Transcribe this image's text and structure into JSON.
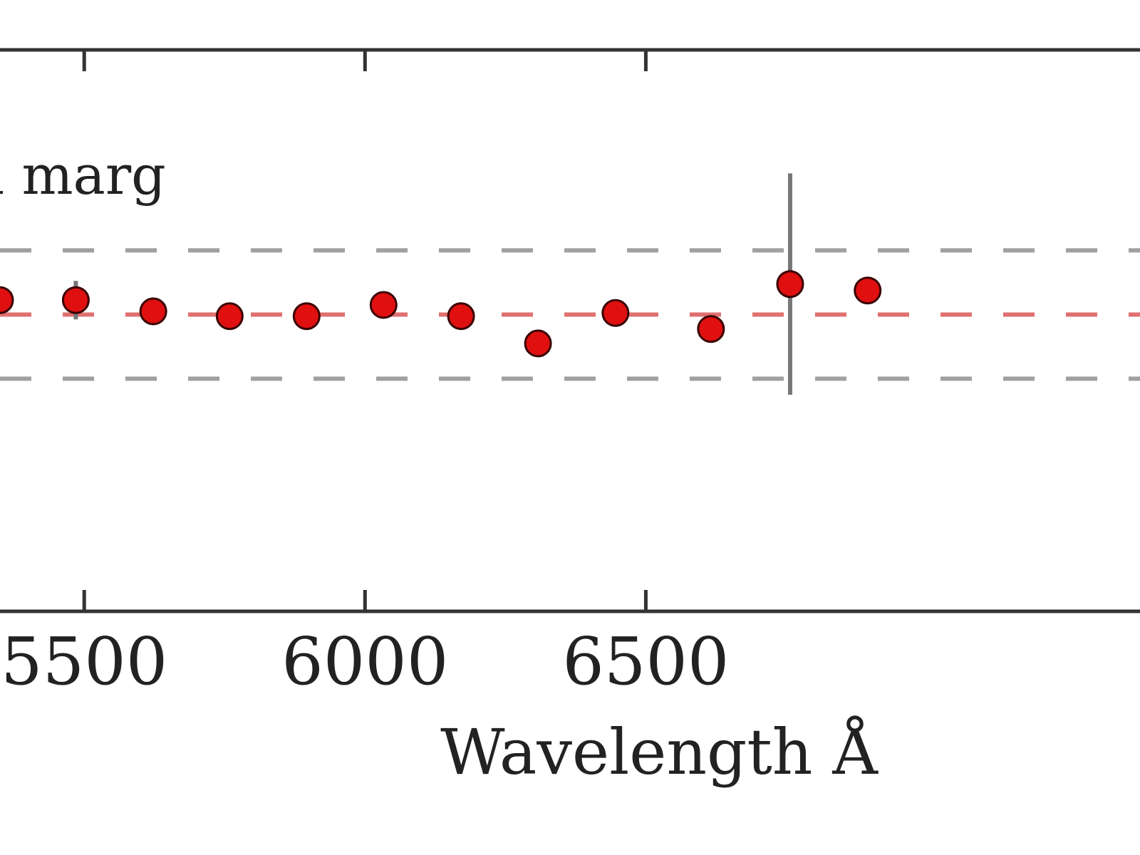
{
  "chart_data": {
    "type": "scatter",
    "title": "",
    "xlabel": "Wavelength Å",
    "ylabel": "",
    "annotation": "l marg",
    "xlim": [
      5350,
      7380
    ],
    "ylim": [
      -1.85,
      1.65
    ],
    "x_ticks": [
      5500,
      6000,
      6500
    ],
    "x_tick_labels": [
      "5500",
      "6000",
      "6500"
    ],
    "reference_lines": [
      {
        "y": 0.0,
        "style": "dashed",
        "color": "#e07070"
      },
      {
        "y": 0.4,
        "style": "dashed",
        "color": "#a0a0a0"
      },
      {
        "y": -0.4,
        "style": "dashed",
        "color": "#a0a0a0"
      }
    ],
    "series": [
      {
        "marker": "circle",
        "color": "#e01010",
        "points": [
          {
            "x": 5350,
            "y": 0.09
          },
          {
            "x": 5485,
            "y": 0.09,
            "err": 0.12
          },
          {
            "x": 5623,
            "y": 0.02
          },
          {
            "x": 5759,
            "y": -0.01
          },
          {
            "x": 5896,
            "y": -0.01
          },
          {
            "x": 6033,
            "y": 0.06
          },
          {
            "x": 6171,
            "y": -0.01
          },
          {
            "x": 6308,
            "y": -0.18
          },
          {
            "x": 6446,
            "y": 0.01
          },
          {
            "x": 6616,
            "y": -0.09
          },
          {
            "x": 6757,
            "y": 0.19,
            "err": 0.69
          },
          {
            "x": 6895,
            "y": 0.15
          }
        ]
      }
    ],
    "grid": false
  }
}
